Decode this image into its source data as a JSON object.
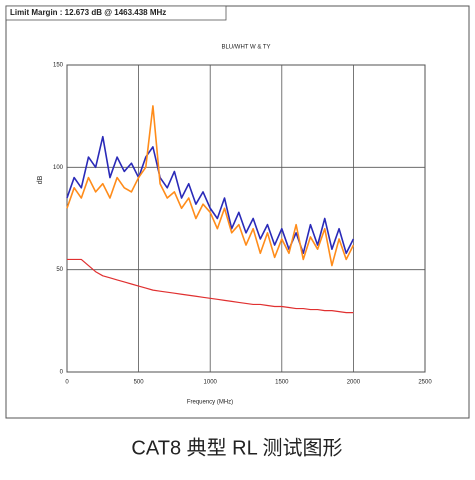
{
  "header": "Limit Margin : 12.673 dB @ 1463.438 MHz",
  "caption": "CAT8 典型 RL 测试图形",
  "chart_data": {
    "type": "line",
    "title": "BLU/WHT W & TY",
    "x_label": "Frequency (MHz)",
    "y_label": "dB",
    "x": [
      0,
      50,
      100,
      150,
      200,
      250,
      300,
      350,
      400,
      450,
      500,
      550,
      600,
      650,
      700,
      750,
      800,
      850,
      900,
      950,
      1000,
      1050,
      1100,
      1150,
      1200,
      1250,
      1300,
      1350,
      1400,
      1450,
      1500,
      1550,
      1600,
      1650,
      1700,
      1750,
      1800,
      1850,
      1900,
      1950,
      2000
    ],
    "series": [
      {
        "name": "BLU",
        "color": "#2a2ab8",
        "values": [
          85,
          95,
          90,
          105,
          100,
          115,
          95,
          105,
          98,
          102,
          95,
          105,
          110,
          95,
          90,
          98,
          85,
          92,
          82,
          88,
          80,
          75,
          85,
          70,
          78,
          68,
          75,
          65,
          72,
          62,
          70,
          60,
          68,
          58,
          72,
          62,
          75,
          60,
          70,
          58,
          65
        ]
      },
      {
        "name": "WHT",
        "color": "#ff8c1a",
        "values": [
          80,
          90,
          85,
          95,
          88,
          92,
          85,
          95,
          90,
          88,
          95,
          100,
          130,
          92,
          85,
          88,
          80,
          85,
          75,
          82,
          78,
          70,
          80,
          68,
          72,
          62,
          70,
          58,
          68,
          56,
          65,
          58,
          72,
          55,
          66,
          60,
          70,
          52,
          65,
          55,
          62
        ]
      },
      {
        "name": "Limit",
        "color": "#e03030",
        "values": [
          55,
          55,
          55,
          52,
          49,
          47,
          46,
          45,
          44,
          43,
          42,
          41,
          40,
          39.5,
          39,
          38.5,
          38,
          37.5,
          37,
          36.5,
          36,
          35.5,
          35,
          34.5,
          34,
          33.5,
          33,
          33,
          32.5,
          32,
          32,
          31.5,
          31,
          31,
          30.5,
          30.5,
          30,
          30,
          29.5,
          29,
          29
        ]
      }
    ],
    "xlim": [
      0,
      2500
    ],
    "ylim": [
      0,
      150
    ],
    "xticks": [
      0,
      500,
      1000,
      1500,
      2000,
      2500
    ],
    "yticks": [
      0,
      50,
      100,
      150
    ],
    "grid": true
  }
}
